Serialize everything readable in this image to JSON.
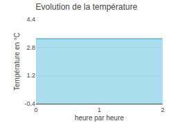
{
  "chart_data": {
    "type": "area",
    "title": "Evolution de la température",
    "xlabel": "heure par heure",
    "ylabel": "Température en °C",
    "x": [
      0,
      1,
      2
    ],
    "values": [
      3.3,
      3.3,
      3.3
    ],
    "color": "#55BBDD",
    "xlim": [
      0,
      2
    ],
    "ylim": [
      -0.4,
      4.4
    ],
    "xticks": [
      0,
      1,
      2
    ],
    "yticks": [
      -0.4,
      1.2,
      2.8,
      4.4
    ],
    "grid": true
  }
}
